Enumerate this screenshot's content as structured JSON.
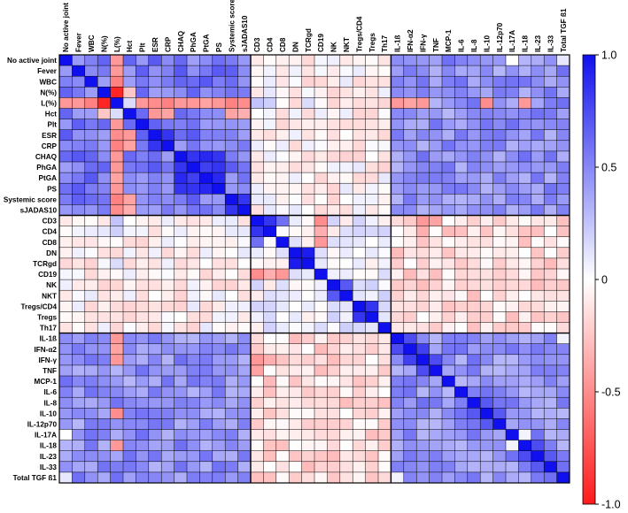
{
  "chart_data": {
    "type": "heatmap",
    "title": "",
    "variables": [
      "No active joint",
      "Fever",
      "WBC",
      "N(%)",
      "L(%)",
      "Hct",
      "Plt",
      "ESR",
      "CRP",
      "CHAQ",
      "PhGA",
      "PtGA",
      "PS",
      "Systemic score",
      "sJADAS10",
      "CD3",
      "CD4",
      "CD8",
      "DN",
      "TCRgd",
      "CD19",
      "NK",
      "NKT",
      "Tregs/CD4",
      "Tregs",
      "Th17",
      "IL-1ß",
      "IFN-α2",
      "IFN-γ",
      "TNF",
      "MCP-1",
      "IL-6",
      "IL-8",
      "IL-10",
      "IL-12p70",
      "IL-17A",
      "IL-18",
      "IL-23",
      "IL-33",
      "Total TGF ß1"
    ],
    "color_scale": {
      "min": -1.0,
      "max": 1.0,
      "tick_labels": [
        "1.0",
        "0.5",
        "0",
        "-0.5",
        "-1.0"
      ],
      "tick_values": [
        1.0,
        0.5,
        0,
        -0.5,
        -1.0
      ],
      "colors": {
        "negative": "#ff1a1a",
        "zero": "#ffffff",
        "positive": "#1010ee"
      }
    },
    "groups": [
      {
        "members": [
          0,
          1,
          2,
          3,
          4,
          5,
          6,
          7,
          8,
          9,
          10,
          11,
          12,
          13,
          14
        ]
      },
      {
        "members": [
          15,
          16,
          17,
          18,
          19,
          20,
          21,
          22,
          23,
          24,
          25
        ]
      },
      {
        "members": [
          26,
          27,
          28,
          29,
          30,
          31,
          32,
          33,
          34,
          35,
          36,
          37,
          38,
          39
        ]
      }
    ],
    "group_correlations": [
      [
        0.55,
        -0.05,
        0.45
      ],
      [
        -0.05,
        0.05,
        -0.15
      ],
      [
        0.45,
        -0.15,
        0.45
      ]
    ],
    "overrides": [
      {
        "a": 3,
        "b": 4,
        "r": -0.95
      },
      {
        "a": 2,
        "b": 4,
        "r": -0.55
      },
      {
        "a": 0,
        "b": 4,
        "r": -0.45
      },
      {
        "a": 1,
        "b": 4,
        "r": -0.45
      },
      {
        "a": 4,
        "b": 5,
        "r": 0.15
      },
      {
        "a": 4,
        "b": 6,
        "r": -0.45
      },
      {
        "a": 4,
        "b": 7,
        "r": -0.5
      },
      {
        "a": 4,
        "b": 8,
        "r": -0.55
      },
      {
        "a": 4,
        "b": 9,
        "r": -0.45
      },
      {
        "a": 4,
        "b": 10,
        "r": -0.45
      },
      {
        "a": 4,
        "b": 11,
        "r": -0.4
      },
      {
        "a": 4,
        "b": 12,
        "r": -0.45
      },
      {
        "a": 4,
        "b": 13,
        "r": -0.55
      },
      {
        "a": 4,
        "b": 14,
        "r": -0.5
      },
      {
        "a": 5,
        "b": 7,
        "r": -0.45
      },
      {
        "a": 5,
        "b": 8,
        "r": -0.4
      },
      {
        "a": 5,
        "b": 13,
        "r": -0.4
      },
      {
        "a": 5,
        "b": 14,
        "r": -0.35
      },
      {
        "a": 3,
        "b": 5,
        "r": -0.25
      },
      {
        "a": 9,
        "b": 10,
        "r": 0.85
      },
      {
        "a": 9,
        "b": 11,
        "r": 0.9
      },
      {
        "a": 9,
        "b": 12,
        "r": 0.85
      },
      {
        "a": 10,
        "b": 11,
        "r": 0.8
      },
      {
        "a": 10,
        "b": 12,
        "r": 0.85
      },
      {
        "a": 11,
        "b": 12,
        "r": 0.9
      },
      {
        "a": 13,
        "b": 14,
        "r": 0.85
      },
      {
        "a": 7,
        "b": 8,
        "r": 0.85
      },
      {
        "a": 15,
        "b": 16,
        "r": 0.85
      },
      {
        "a": 15,
        "b": 17,
        "r": 0.6
      },
      {
        "a": 18,
        "b": 19,
        "r": 0.95
      },
      {
        "a": 21,
        "b": 22,
        "r": 0.7
      },
      {
        "a": 23,
        "b": 24,
        "r": 0.85
      },
      {
        "a": 15,
        "b": 20,
        "r": -0.5
      },
      {
        "a": 16,
        "b": 20,
        "r": -0.35
      },
      {
        "a": 17,
        "b": 20,
        "r": -0.45
      },
      {
        "a": 4,
        "b": 15,
        "r": 0.25
      },
      {
        "a": 4,
        "b": 16,
        "r": 0.2
      },
      {
        "a": 4,
        "b": 19,
        "r": 0.15
      },
      {
        "a": 26,
        "b": 27,
        "r": 0.75
      },
      {
        "a": 27,
        "b": 28,
        "r": 0.8
      },
      {
        "a": 28,
        "b": 29,
        "r": 0.75
      },
      {
        "a": 32,
        "b": 33,
        "r": 0.7
      },
      {
        "a": 33,
        "b": 34,
        "r": 0.7
      },
      {
        "a": 36,
        "b": 37,
        "r": 0.75
      },
      {
        "a": 37,
        "b": 38,
        "r": 0.7
      },
      {
        "a": 4,
        "b": 26,
        "r": -0.45
      },
      {
        "a": 4,
        "b": 27,
        "r": -0.4
      },
      {
        "a": 4,
        "b": 28,
        "r": -0.45
      },
      {
        "a": 4,
        "b": 33,
        "r": -0.5
      },
      {
        "a": 4,
        "b": 36,
        "r": -0.45
      },
      {
        "a": 15,
        "b": 28,
        "r": -0.45
      },
      {
        "a": 15,
        "b": 29,
        "r": -0.4
      },
      {
        "a": 16,
        "b": 28,
        "r": -0.35
      },
      {
        "a": 35,
        "b": 0,
        "r": 0.0
      },
      {
        "a": 35,
        "b": 36,
        "r": 0.05
      },
      {
        "a": 39,
        "b": 0,
        "r": 0.1
      },
      {
        "a": 39,
        "b": 26,
        "r": 0.05
      },
      {
        "a": 25,
        "b": 26,
        "r": -0.1
      },
      {
        "a": 30,
        "b": 31,
        "r": 0.3
      },
      {
        "a": 30,
        "b": 36,
        "r": 0.35
      }
    ]
  }
}
